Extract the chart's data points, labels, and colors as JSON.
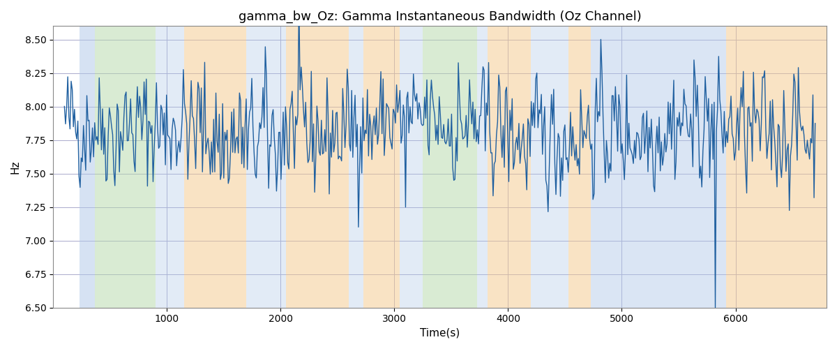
{
  "title": "gamma_bw_Oz: Gamma Instantaneous Bandwidth (Oz Channel)",
  "xlabel": "Time(s)",
  "ylabel": "Hz",
  "xlim": [
    0,
    6800
  ],
  "ylim": [
    6.5,
    8.6
  ],
  "line_color": "#2060a0",
  "line_width": 1.0,
  "bg_color": "#ffffff",
  "grid_color": "#aaaacc",
  "bands": [
    {
      "start": 230,
      "end": 370,
      "color": "#aec6e8",
      "alpha": 0.5
    },
    {
      "start": 370,
      "end": 900,
      "color": "#b5d9a8",
      "alpha": 0.5
    },
    {
      "start": 900,
      "end": 1150,
      "color": "#aec6e8",
      "alpha": 0.35
    },
    {
      "start": 1150,
      "end": 1700,
      "color": "#f5c98a",
      "alpha": 0.5
    },
    {
      "start": 1700,
      "end": 2050,
      "color": "#aec6e8",
      "alpha": 0.35
    },
    {
      "start": 2050,
      "end": 2600,
      "color": "#f5c98a",
      "alpha": 0.5
    },
    {
      "start": 2600,
      "end": 2730,
      "color": "#aec6e8",
      "alpha": 0.35
    },
    {
      "start": 2730,
      "end": 3050,
      "color": "#f5c98a",
      "alpha": 0.5
    },
    {
      "start": 3050,
      "end": 3250,
      "color": "#aec6e8",
      "alpha": 0.35
    },
    {
      "start": 3250,
      "end": 3730,
      "color": "#b5d9a8",
      "alpha": 0.5
    },
    {
      "start": 3730,
      "end": 3820,
      "color": "#aec6e8",
      "alpha": 0.35
    },
    {
      "start": 3820,
      "end": 4200,
      "color": "#f5c98a",
      "alpha": 0.5
    },
    {
      "start": 4200,
      "end": 4530,
      "color": "#aec6e8",
      "alpha": 0.35
    },
    {
      "start": 4530,
      "end": 4730,
      "color": "#f5c98a",
      "alpha": 0.5
    },
    {
      "start": 4730,
      "end": 5920,
      "color": "#aec6e8",
      "alpha": 0.45
    },
    {
      "start": 5920,
      "end": 6800,
      "color": "#f5c98a",
      "alpha": 0.5
    }
  ],
  "seed": 42,
  "n_points": 670,
  "t_start": 100,
  "t_end": 6700,
  "base_mean": 7.82,
  "noise_std": 0.12,
  "title_fontsize": 13,
  "tick_fontsize": 10,
  "label_fontsize": 11
}
